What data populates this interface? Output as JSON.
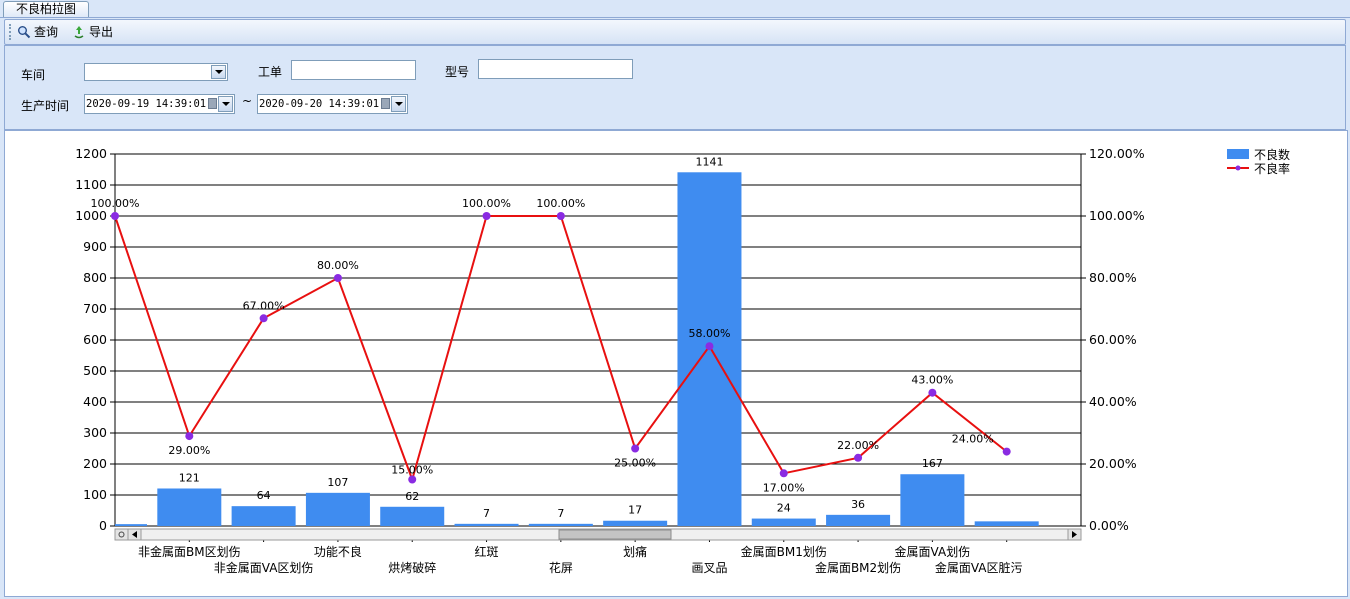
{
  "tab": {
    "title": "不良柏拉图"
  },
  "toolbar": {
    "query_label": "查询",
    "export_label": "导出"
  },
  "filters": {
    "workshop_label": "车间",
    "workshop_value": "",
    "workorder_label": "工单",
    "workorder_value": "",
    "model_label": "型号",
    "model_value": "",
    "time_label": "生产时间",
    "start_time": "2020-09-19 14:39:01",
    "range_sep": "~",
    "end_time": "2020-09-20 14:39:01"
  },
  "chart_data": {
    "type": "bar",
    "categories": [
      "",
      "非金属面BM区划伤",
      "非金属面VA区划伤",
      "功能不良",
      "烘烤破碎",
      "红斑",
      "花屏",
      "划痛",
      "画叉品",
      "金属面BM1划伤",
      "金属面BM2划伤",
      "金属面VA划伤",
      "金属面VA区脏污"
    ],
    "series": [
      {
        "name": "不良数",
        "type": "bar",
        "axis": "left",
        "color": "#3f8cf0",
        "values": [
          6,
          121,
          64,
          107,
          62,
          7,
          7,
          17,
          1141,
          24,
          36,
          167,
          15
        ],
        "labels": [
          "",
          "121",
          "64",
          "107",
          "62",
          "7",
          "7",
          "17",
          "1141",
          "24",
          "36",
          "167",
          ""
        ]
      },
      {
        "name": "不良率",
        "type": "line",
        "axis": "right",
        "color": "#e81010",
        "marker_color": "#8a2be2",
        "values": [
          100,
          29,
          67,
          80,
          15,
          100,
          100,
          25,
          58,
          17,
          22,
          43,
          24
        ],
        "labels": [
          "100.00%",
          "29.00%",
          "67.00%",
          "80.00%",
          "15.00%",
          "100.00%",
          "100.00%",
          "25.00%",
          "58.00%",
          "17.00%",
          "22.00%",
          "43.00%",
          "24.00%"
        ]
      }
    ],
    "y_left": {
      "min": 0,
      "max": 1200,
      "step": 100,
      "ticks": [
        "0",
        "100",
        "200",
        "300",
        "400",
        "500",
        "600",
        "700",
        "800",
        "900",
        "1000",
        "1100",
        "1200"
      ]
    },
    "y_right": {
      "min": 0,
      "max": 120,
      "step": 20,
      "ticks": [
        "0.00%",
        "20.00%",
        "40.00%",
        "60.00%",
        "80.00%",
        "100.00%",
        "120.00%"
      ]
    },
    "grid": "horizontal",
    "legend_position": "top-right",
    "scrollbar": true
  }
}
